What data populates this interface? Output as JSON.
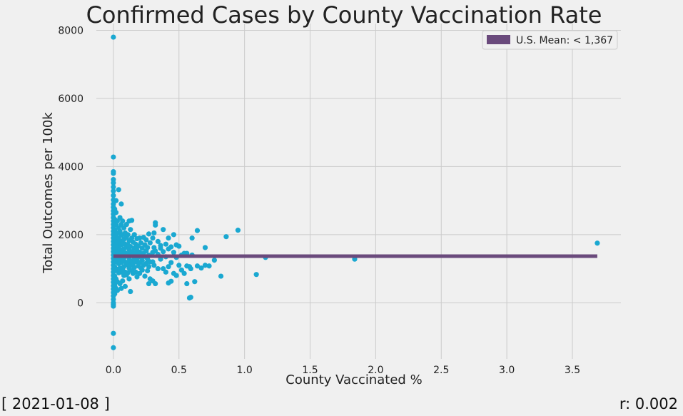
{
  "footer": {
    "date": "[ 2021-01-08 ]",
    "correlation": "r: 0.002"
  },
  "colors": {
    "background": "#f0f0f0",
    "grid": "#cbcbcb",
    "points": "#1aa8d1",
    "mean_line": "#6a4a7c"
  },
  "chart_data": {
    "type": "scatter",
    "title": "Confirmed Cases by County Vaccination Rate",
    "xlabel": "County Vaccinated %",
    "ylabel": "Total Outcomes per 100k",
    "xlim": [
      -0.13,
      3.87
    ],
    "ylim": [
      -1650,
      8200
    ],
    "xticks": [
      0.0,
      0.5,
      1.0,
      1.5,
      2.0,
      2.5,
      3.0,
      3.5
    ],
    "xtick_labels": [
      "0.0",
      "0.5",
      "1.0",
      "1.5",
      "2.0",
      "2.5",
      "3.0",
      "3.5"
    ],
    "yticks": [
      0,
      2000,
      4000,
      6000,
      8000
    ],
    "ytick_labels": [
      "0",
      "2000",
      "4000",
      "6000",
      "8000"
    ],
    "grid": true,
    "legend": {
      "position": "top-right",
      "entries": [
        "U.S. Mean: < 1,367"
      ]
    },
    "mean_line": {
      "label": "U.S. Mean: < 1,367",
      "y": 1367,
      "x_start": 0.0,
      "x_end": 3.69
    },
    "series": [
      {
        "points": [
          [
            0,
            7800
          ],
          [
            0,
            4280
          ],
          [
            0,
            3850
          ],
          [
            0,
            3800
          ],
          [
            0,
            3620
          ],
          [
            0,
            3520
          ],
          [
            0,
            3400
          ],
          [
            0,
            3280
          ],
          [
            0,
            3150
          ],
          [
            0,
            3020
          ],
          [
            0,
            2900
          ],
          [
            0,
            2800
          ],
          [
            0,
            2700
          ],
          [
            0,
            2600
          ],
          [
            0,
            2500
          ],
          [
            0,
            2400
          ],
          [
            0,
            2300
          ],
          [
            0,
            2200
          ],
          [
            0,
            2100
          ],
          [
            0,
            2000
          ],
          [
            0,
            1900
          ],
          [
            0,
            1800
          ],
          [
            0,
            1700
          ],
          [
            0,
            1600
          ],
          [
            0,
            1500
          ],
          [
            0,
            1400
          ],
          [
            0,
            1300
          ],
          [
            0,
            1200
          ],
          [
            0,
            1100
          ],
          [
            0,
            1000
          ],
          [
            0,
            900
          ],
          [
            0,
            800
          ],
          [
            0,
            700
          ],
          [
            0,
            600
          ],
          [
            0,
            500
          ],
          [
            0,
            400
          ],
          [
            0,
            300
          ],
          [
            0,
            200
          ],
          [
            0,
            100
          ],
          [
            0,
            0
          ],
          [
            0,
            -50
          ],
          [
            0,
            -100
          ],
          [
            0,
            -900
          ],
          [
            0,
            -1320
          ],
          [
            0.01,
            2750
          ],
          [
            0.01,
            2450
          ],
          [
            0.01,
            2150
          ],
          [
            0.01,
            1880
          ],
          [
            0.01,
            1620
          ],
          [
            0.01,
            1350
          ],
          [
            0.01,
            1050
          ],
          [
            0.01,
            780
          ],
          [
            0.01,
            520
          ],
          [
            0.01,
            260
          ],
          [
            0.02,
            3000
          ],
          [
            0.02,
            2650
          ],
          [
            0.02,
            2300
          ],
          [
            0.02,
            1950
          ],
          [
            0.02,
            1700
          ],
          [
            0.02,
            1450
          ],
          [
            0.02,
            1200
          ],
          [
            0.02,
            950
          ],
          [
            0.02,
            700
          ],
          [
            0.02,
            420
          ],
          [
            0.03,
            2400
          ],
          [
            0.03,
            2050
          ],
          [
            0.03,
            1780
          ],
          [
            0.03,
            1520
          ],
          [
            0.03,
            1260
          ],
          [
            0.03,
            980
          ],
          [
            0.03,
            620
          ],
          [
            0.03,
            360
          ],
          [
            0.04,
            3320
          ],
          [
            0.04,
            2200
          ],
          [
            0.04,
            1900
          ],
          [
            0.04,
            1650
          ],
          [
            0.04,
            1400
          ],
          [
            0.04,
            1150
          ],
          [
            0.04,
            880
          ],
          [
            0.05,
            2500
          ],
          [
            0.05,
            2100
          ],
          [
            0.05,
            1820
          ],
          [
            0.05,
            1560
          ],
          [
            0.05,
            1300
          ],
          [
            0.05,
            1020
          ],
          [
            0.05,
            560
          ],
          [
            0.06,
            2900
          ],
          [
            0.06,
            2300
          ],
          [
            0.06,
            1980
          ],
          [
            0.06,
            1700
          ],
          [
            0.06,
            1450
          ],
          [
            0.06,
            1180
          ],
          [
            0.06,
            900
          ],
          [
            0.06,
            420
          ],
          [
            0.07,
            2400
          ],
          [
            0.07,
            2000
          ],
          [
            0.07,
            1750
          ],
          [
            0.07,
            1500
          ],
          [
            0.07,
            1240
          ],
          [
            0.07,
            960
          ],
          [
            0.07,
            640
          ],
          [
            0.08,
            2200
          ],
          [
            0.08,
            1860
          ],
          [
            0.08,
            1580
          ],
          [
            0.08,
            1320
          ],
          [
            0.08,
            1060
          ],
          [
            0.08,
            800
          ],
          [
            0.09,
            2050
          ],
          [
            0.09,
            1720
          ],
          [
            0.09,
            1460
          ],
          [
            0.09,
            1200
          ],
          [
            0.09,
            900
          ],
          [
            0.09,
            480
          ],
          [
            0.1,
            2300
          ],
          [
            0.1,
            1920
          ],
          [
            0.1,
            1640
          ],
          [
            0.1,
            1380
          ],
          [
            0.1,
            1120
          ],
          [
            0.1,
            820
          ],
          [
            0.11,
            2000
          ],
          [
            0.11,
            1700
          ],
          [
            0.11,
            1440
          ],
          [
            0.11,
            1180
          ],
          [
            0.11,
            880
          ],
          [
            0.12,
            2400
          ],
          [
            0.12,
            1820
          ],
          [
            0.12,
            1560
          ],
          [
            0.12,
            1300
          ],
          [
            0.12,
            1020
          ],
          [
            0.12,
            700
          ],
          [
            0.13,
            2150
          ],
          [
            0.13,
            1650
          ],
          [
            0.13,
            1380
          ],
          [
            0.13,
            1100
          ],
          [
            0.13,
            330
          ],
          [
            0.14,
            2420
          ],
          [
            0.14,
            1900
          ],
          [
            0.14,
            1500
          ],
          [
            0.14,
            1220
          ],
          [
            0.14,
            950
          ],
          [
            0.15,
            1780
          ],
          [
            0.15,
            1420
          ],
          [
            0.15,
            1160
          ],
          [
            0.15,
            860
          ],
          [
            0.16,
            2000
          ],
          [
            0.16,
            1600
          ],
          [
            0.16,
            1320
          ],
          [
            0.16,
            1040
          ],
          [
            0.17,
            1720
          ],
          [
            0.17,
            1460
          ],
          [
            0.17,
            1200
          ],
          [
            0.17,
            900
          ],
          [
            0.18,
            1880
          ],
          [
            0.18,
            1540
          ],
          [
            0.18,
            1260
          ],
          [
            0.18,
            760
          ],
          [
            0.19,
            1660
          ],
          [
            0.19,
            1380
          ],
          [
            0.19,
            1080
          ],
          [
            0.2,
            1900
          ],
          [
            0.2,
            1480
          ],
          [
            0.2,
            1180
          ],
          [
            0.2,
            860
          ],
          [
            0.21,
            1760
          ],
          [
            0.21,
            1340
          ],
          [
            0.21,
            1020
          ],
          [
            0.22,
            1600
          ],
          [
            0.22,
            1240
          ],
          [
            0.22,
            960
          ],
          [
            0.23,
            1920
          ],
          [
            0.23,
            1450
          ],
          [
            0.23,
            1100
          ],
          [
            0.24,
            1700
          ],
          [
            0.24,
            1360
          ],
          [
            0.24,
            780
          ],
          [
            0.25,
            1850
          ],
          [
            0.25,
            1520
          ],
          [
            0.25,
            1150
          ],
          [
            0.26,
            1620
          ],
          [
            0.26,
            1280
          ],
          [
            0.26,
            940
          ],
          [
            0.27,
            2020
          ],
          [
            0.27,
            1400
          ],
          [
            0.27,
            1060
          ],
          [
            0.27,
            560
          ],
          [
            0.28,
            1760
          ],
          [
            0.28,
            1200
          ],
          [
            0.28,
            700
          ],
          [
            0.3,
            1900
          ],
          [
            0.3,
            1480
          ],
          [
            0.3,
            1200
          ],
          [
            0.3,
            640
          ],
          [
            0.31,
            2050
          ],
          [
            0.31,
            1620
          ],
          [
            0.31,
            1100
          ],
          [
            0.32,
            2350
          ],
          [
            0.32,
            2280
          ],
          [
            0.32,
            1520
          ],
          [
            0.32,
            560
          ],
          [
            0.34,
            1800
          ],
          [
            0.34,
            1420
          ],
          [
            0.34,
            1000
          ],
          [
            0.36,
            1600
          ],
          [
            0.36,
            1280
          ],
          [
            0.36,
            1680
          ],
          [
            0.38,
            2150
          ],
          [
            0.38,
            1500
          ],
          [
            0.38,
            1000
          ],
          [
            0.4,
            1720
          ],
          [
            0.4,
            1350
          ],
          [
            0.4,
            900
          ],
          [
            0.42,
            1900
          ],
          [
            0.42,
            1580
          ],
          [
            0.42,
            1060
          ],
          [
            0.42,
            580
          ],
          [
            0.44,
            1640
          ],
          [
            0.44,
            1180
          ],
          [
            0.44,
            630
          ],
          [
            0.46,
            2000
          ],
          [
            0.46,
            1480
          ],
          [
            0.46,
            860
          ],
          [
            0.48,
            1700
          ],
          [
            0.48,
            1330
          ],
          [
            0.48,
            800
          ],
          [
            0.5,
            1660
          ],
          [
            0.5,
            1100
          ],
          [
            0.52,
            1400
          ],
          [
            0.52,
            960
          ],
          [
            0.54,
            1450
          ],
          [
            0.54,
            860
          ],
          [
            0.56,
            1450
          ],
          [
            0.56,
            1080
          ],
          [
            0.56,
            560
          ],
          [
            0.58,
            1060
          ],
          [
            0.58,
            140
          ],
          [
            0.59,
            160
          ],
          [
            0.59,
            1000
          ],
          [
            0.6,
            1900
          ],
          [
            0.6,
            1400
          ],
          [
            0.62,
            620
          ],
          [
            0.64,
            2120
          ],
          [
            0.64,
            1080
          ],
          [
            0.67,
            1020
          ],
          [
            0.7,
            1620
          ],
          [
            0.7,
            1100
          ],
          [
            0.73,
            1080
          ],
          [
            0.77,
            1250
          ],
          [
            0.82,
            780
          ],
          [
            0.86,
            1940
          ],
          [
            0.95,
            2130
          ],
          [
            1.09,
            830
          ],
          [
            1.16,
            1330
          ],
          [
            1.84,
            1280
          ],
          [
            3.69,
            1750
          ]
        ]
      }
    ]
  }
}
